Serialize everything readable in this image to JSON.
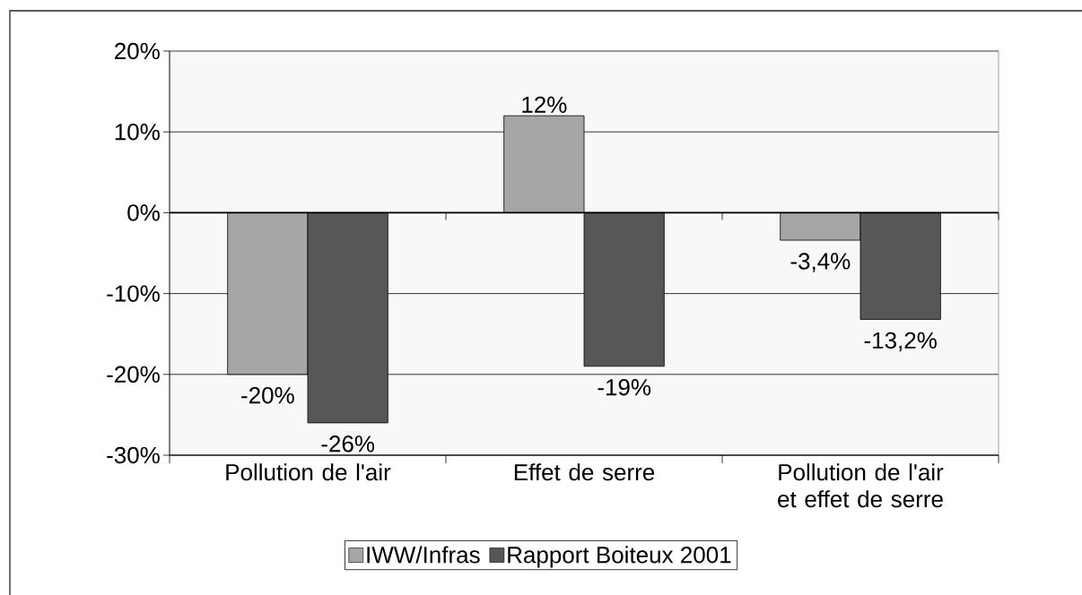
{
  "chart_data": {
    "type": "bar",
    "categories": [
      "Pollution de l'air",
      "Effet de serre",
      "Pollution de l'air et effet de serre"
    ],
    "series": [
      {
        "name": "IWW/Infras",
        "color": "#a6a6a6",
        "values": [
          -20,
          12,
          -3.4
        ],
        "value_labels": [
          "-20%",
          "12%",
          "-3,4%"
        ]
      },
      {
        "name": "Rapport Boiteux 2001",
        "color": "#575757",
        "values": [
          -26,
          -19,
          -13.2
        ],
        "value_labels": [
          "-26%",
          "-19%",
          "-13,2%"
        ]
      }
    ],
    "ylim": [
      -30,
      20
    ],
    "yticks": [
      {
        "value": -30,
        "label": "-30%"
      },
      {
        "value": -20,
        "label": "-20%"
      },
      {
        "value": -10,
        "label": "-10%"
      },
      {
        "value": 0,
        "label": "0%"
      },
      {
        "value": 10,
        "label": "10%"
      },
      {
        "value": 20,
        "label": "20%"
      }
    ],
    "grid": "y",
    "legend": "bottom"
  }
}
